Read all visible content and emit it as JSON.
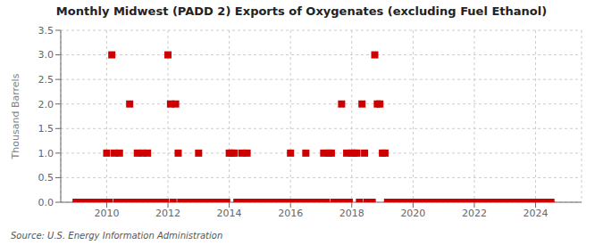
{
  "chart_data": {
    "type": "scatter",
    "title": "Monthly Midwest (PADD 2) Exports of Oxygenates (excluding Fuel Ethanol)",
    "y_label": "Thousand Barrels",
    "annotations": [
      "Source: U.S. Energy Information Administration"
    ],
    "color": "#cc0000",
    "marker": "square",
    "grid": true,
    "xlim": [
      2008.5,
      2025.5
    ],
    "xticks": [
      2010,
      2012,
      2014,
      2016,
      2018,
      2020,
      2022,
      2024
    ],
    "ylim": [
      0,
      3.5
    ],
    "yticks": [
      {
        "value": 0,
        "label": "0.0"
      },
      0.5,
      {
        "value": 1,
        "label": "1.0"
      },
      1.5,
      {
        "value": 2,
        "label": "2.0"
      },
      2.5,
      {
        "value": 3,
        "label": "3.0"
      },
      3.5
    ],
    "x": [
      2009.0,
      2009.083,
      2009.167,
      2009.25,
      2009.333,
      2009.417,
      2009.5,
      2009.583,
      2009.667,
      2009.75,
      2009.833,
      2009.917,
      2010.0,
      2010.083,
      2010.167,
      2010.25,
      2010.333,
      2010.417,
      2010.5,
      2010.583,
      2010.667,
      2010.75,
      2010.833,
      2010.917,
      2011.0,
      2011.083,
      2011.167,
      2011.25,
      2011.333,
      2011.417,
      2011.5,
      2011.583,
      2011.667,
      2011.75,
      2011.833,
      2011.917,
      2012.0,
      2012.083,
      2012.167,
      2012.25,
      2012.333,
      2012.417,
      2012.5,
      2012.583,
      2012.667,
      2012.75,
      2012.833,
      2012.917,
      2013.0,
      2013.083,
      2013.167,
      2013.25,
      2013.333,
      2013.417,
      2013.5,
      2013.583,
      2013.667,
      2013.75,
      2013.833,
      2013.917,
      2014.0,
      2014.083,
      2014.167,
      2014.25,
      2014.333,
      2014.417,
      2014.5,
      2014.583,
      2014.667,
      2014.75,
      2014.833,
      2014.917,
      2015.0,
      2015.083,
      2015.167,
      2015.25,
      2015.333,
      2015.417,
      2015.5,
      2015.583,
      2015.667,
      2015.75,
      2015.833,
      2015.917,
      2016.0,
      2016.083,
      2016.167,
      2016.25,
      2016.333,
      2016.417,
      2016.5,
      2016.583,
      2016.667,
      2016.75,
      2016.833,
      2016.917,
      2017.0,
      2017.083,
      2017.167,
      2017.25,
      2017.333,
      2017.417,
      2017.5,
      2017.583,
      2017.667,
      2017.75,
      2017.833,
      2017.917,
      2018.0,
      2018.083,
      2018.167,
      2018.25,
      2018.333,
      2018.417,
      2018.5,
      2018.583,
      2018.667,
      2018.75,
      2018.833,
      2018.917,
      2019.0,
      2019.083,
      2019.167,
      2019.25,
      2019.333,
      2019.417,
      2019.5,
      2019.583,
      2019.667,
      2019.75,
      2019.833,
      2019.917,
      2020.0,
      2020.083,
      2020.167,
      2020.25,
      2020.333,
      2020.417,
      2020.5,
      2020.583,
      2020.667,
      2020.75,
      2020.833,
      2020.917,
      2021.0,
      2021.083,
      2021.167,
      2021.25,
      2021.333,
      2021.417,
      2021.5,
      2021.583,
      2021.667,
      2021.75,
      2021.833,
      2021.917,
      2022.0,
      2022.083,
      2022.167,
      2022.25,
      2022.333,
      2022.417,
      2022.5,
      2022.583,
      2022.667,
      2022.75,
      2022.833,
      2022.917,
      2023.0,
      2023.083,
      2023.167,
      2023.25,
      2023.333,
      2023.417,
      2023.5,
      2023.583,
      2023.667,
      2023.75,
      2023.833,
      2023.917,
      2024.0,
      2024.083,
      2024.167,
      2024.25,
      2024.333,
      2024.417,
      2024.5
    ],
    "values": [
      0,
      0,
      0,
      0,
      0,
      0,
      0,
      0,
      0,
      0,
      0,
      0,
      1,
      0,
      3,
      1,
      0,
      1,
      0,
      0,
      0,
      2,
      0,
      0,
      1,
      0,
      1,
      0,
      1,
      0,
      0,
      0,
      0,
      0,
      0,
      0,
      3,
      2,
      0,
      2,
      1,
      0,
      0,
      0,
      0,
      0,
      0,
      0,
      1,
      0,
      0,
      0,
      0,
      0,
      0,
      0,
      0,
      0,
      0,
      0,
      1,
      1,
      1,
      0,
      0,
      1,
      0,
      1,
      0,
      0,
      0,
      0,
      0,
      0,
      0,
      0,
      0,
      0,
      0,
      0,
      0,
      0,
      0,
      0,
      1,
      0,
      0,
      0,
      0,
      0,
      1,
      0,
      0,
      0,
      0,
      0,
      0,
      1,
      0,
      1,
      1,
      0,
      0,
      0,
      2,
      0,
      1,
      0,
      1,
      1,
      1,
      0,
      2,
      1,
      0,
      0,
      0,
      3,
      2,
      2,
      1,
      1,
      0,
      0,
      0,
      0,
      0,
      0,
      0,
      0,
      0,
      0,
      0,
      0,
      0,
      0,
      0,
      0,
      0,
      0,
      0,
      0,
      0,
      0,
      0,
      0,
      0,
      0,
      0,
      0,
      0,
      0,
      0,
      0,
      0,
      0,
      0,
      0,
      0,
      0,
      0,
      0,
      0,
      0,
      0,
      0,
      0,
      0,
      0,
      0,
      0,
      0,
      0,
      0,
      0,
      0,
      0,
      0,
      0,
      0,
      0,
      0,
      0,
      0,
      0,
      0,
      0
    ]
  }
}
